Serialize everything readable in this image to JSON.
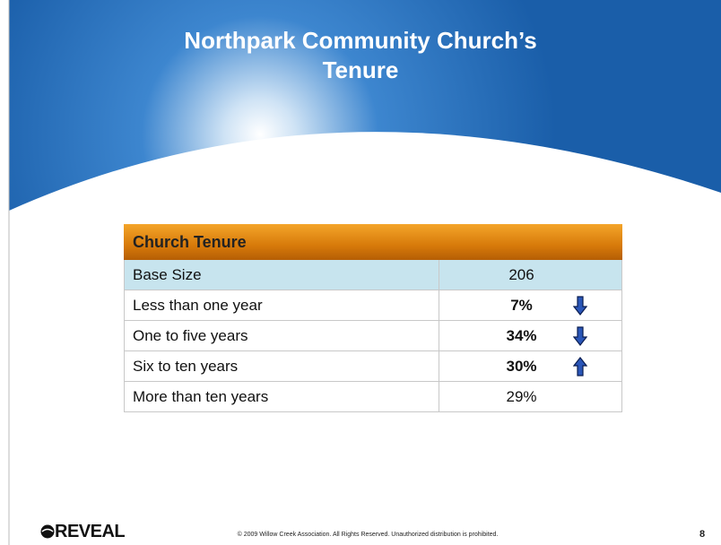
{
  "slide": {
    "title_lines": [
      "Northpark Community Church’s",
      "Tenure"
    ],
    "table": {
      "header": "Church Tenure",
      "rows": [
        [
          "Base Size",
          "206"
        ],
        [
          "Less than one year",
          "7%"
        ],
        [
          "One to five years",
          "34%"
        ],
        [
          "Six to ten years",
          "30%"
        ],
        [
          "More than ten years",
          "29%"
        ]
      ]
    },
    "footer": {
      "logo": "REVEAL",
      "copyright": "© 2009 Willow Creek Association.  All Rights Reserved.  Unauthorized distribution is prohibited.",
      "page": "8"
    }
  }
}
